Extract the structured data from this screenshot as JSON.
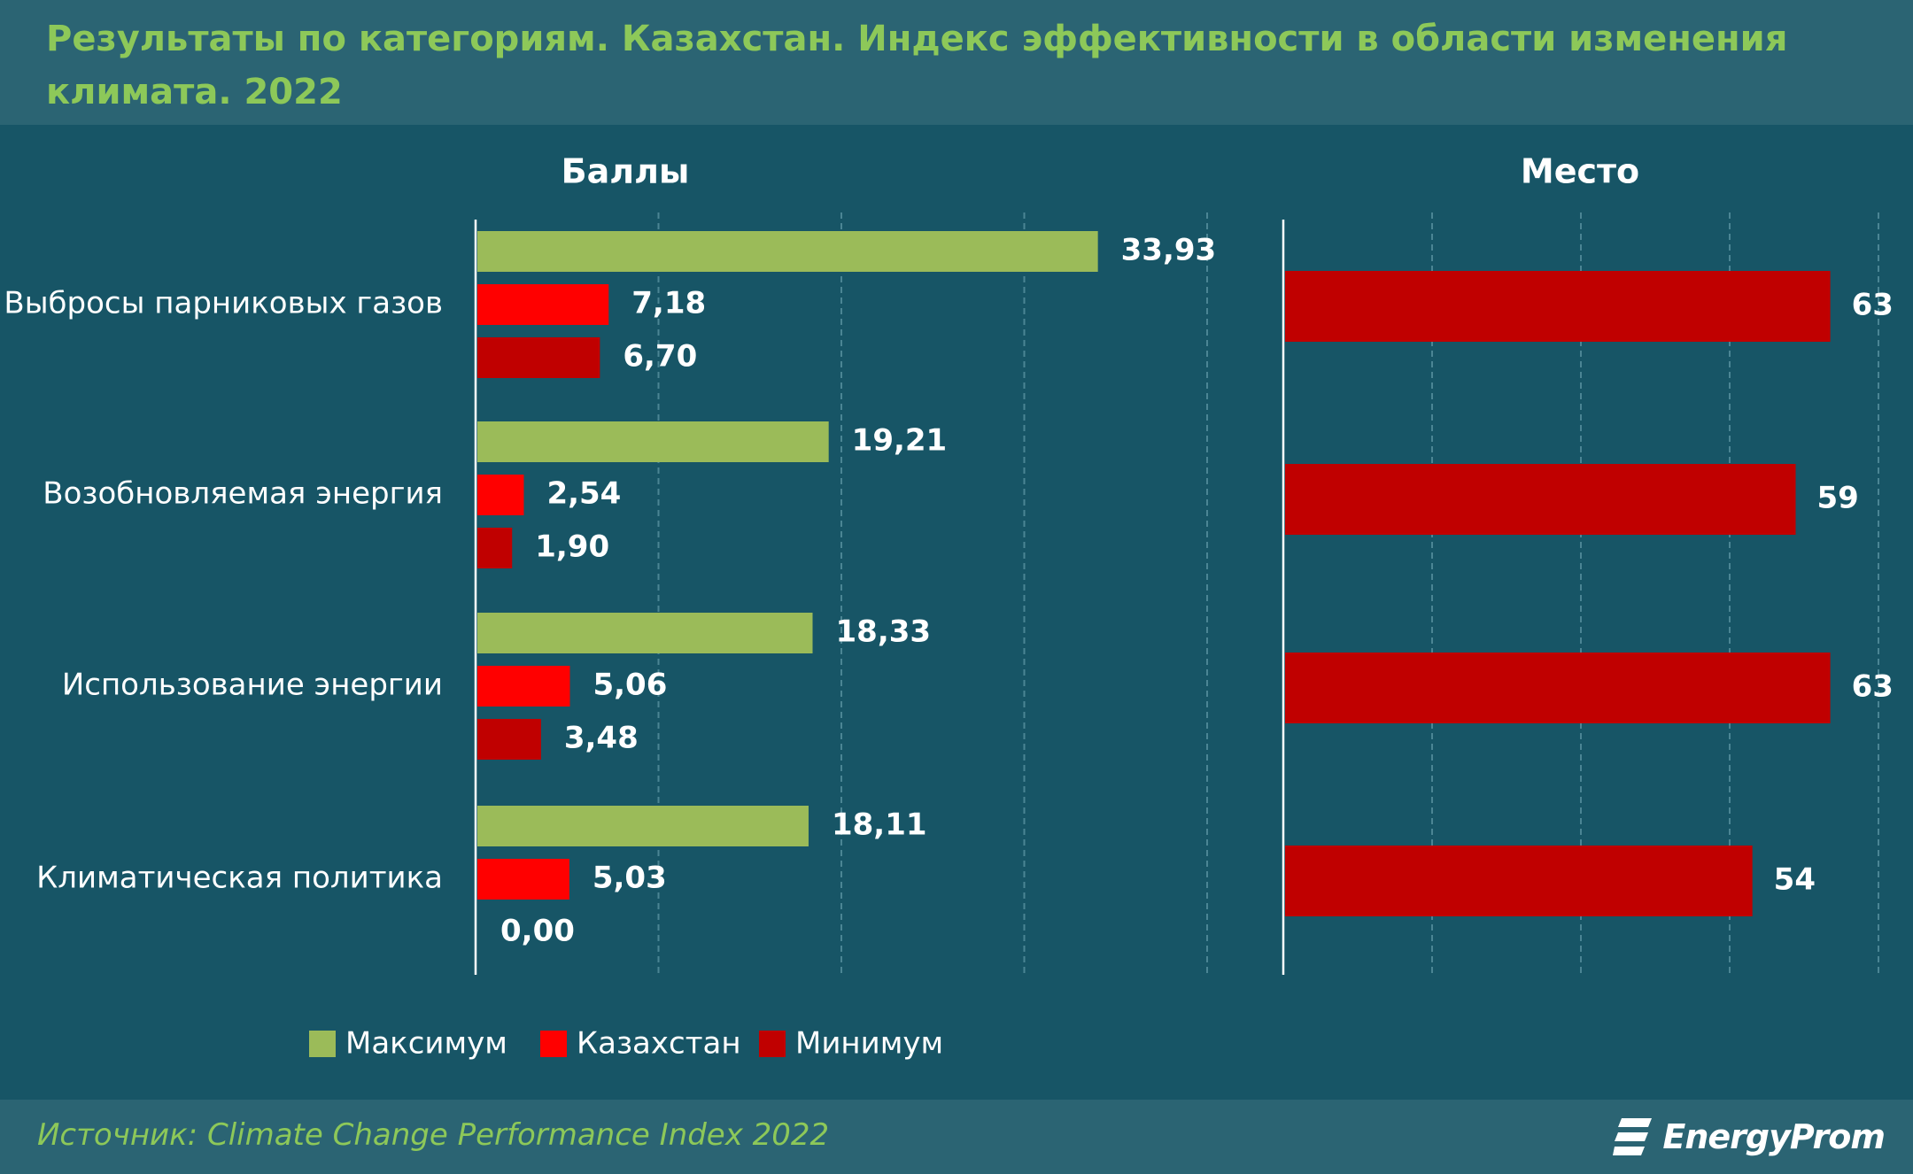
{
  "title": "Результаты по категориям. Казахстан. Индекс эффективности в области изменения климата. 2022",
  "source": "Источник: Climate Change Performance Index 2022",
  "logo_text": "EnergyProm",
  "logo_icon": "energyprom-logo-icon",
  "colors": {
    "background": "#175566",
    "header": "#2b6473",
    "accent_green": "#8dc859",
    "max": "#9bbb59",
    "kazakhstan": "#ff0000",
    "min": "#c00000"
  },
  "chart_data": [
    {
      "type": "bar",
      "orientation": "horizontal",
      "title": "Баллы",
      "categories": [
        "Выбросы парниковых газов",
        "Возобновляемая энергия",
        "Использование энергии",
        "Климатическая политика"
      ],
      "series": [
        {
          "name": "Максимум",
          "values": [
            33.93,
            19.21,
            18.33,
            18.11
          ]
        },
        {
          "name": "Казахстан",
          "values": [
            7.18,
            2.54,
            5.06,
            5.03
          ]
        },
        {
          "name": "Минимум",
          "values": [
            6.7,
            1.9,
            3.48,
            0.0
          ]
        }
      ],
      "value_labels": [
        [
          "33,93",
          "19,21",
          "18,33",
          "18,11"
        ],
        [
          "7,18",
          "2,54",
          "5,06",
          "5,03"
        ],
        [
          "6,70",
          "1,90",
          "3,48",
          "0,00"
        ]
      ],
      "xlim": [
        0,
        40
      ],
      "grid": true,
      "legend": "bottom"
    },
    {
      "type": "bar",
      "orientation": "horizontal",
      "title": "Место",
      "categories": [
        "Выбросы парниковых газов",
        "Возобновляемая энергия",
        "Использование энергии",
        "Климатическая политика"
      ],
      "values": [
        63,
        59,
        63,
        54
      ],
      "value_labels": [
        "63",
        "59",
        "63",
        "54"
      ],
      "xlim": [
        0,
        70
      ],
      "grid": true
    }
  ]
}
